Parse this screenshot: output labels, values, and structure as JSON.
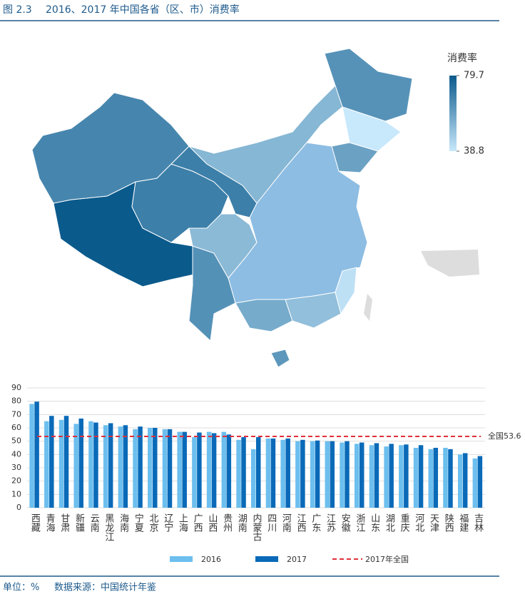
{
  "header": {
    "figure_no": "图 2.3",
    "title": "2016、2017 年中国各省（区、市）消费率"
  },
  "chart_data": [
    {
      "type": "map",
      "colorbar_title": "消费率",
      "clim": [
        38.8,
        79.7
      ],
      "cticks": [
        38.8,
        79.7
      ],
      "colorscale": [
        "#c8e8fb",
        "#0b5a8c"
      ]
    },
    {
      "type": "bar",
      "categories": [
        "西藏",
        "青海",
        "甘肃",
        "新疆",
        "云南",
        "黑龙江",
        "海南",
        "宁夏",
        "北京",
        "辽宁",
        "上海",
        "广西",
        "山西",
        "贵州",
        "湖南",
        "内蒙古",
        "四川",
        "河南",
        "江西",
        "广东",
        "江苏",
        "安徽",
        "浙江",
        "山东",
        "湖北",
        "重庆",
        "河北",
        "天津",
        "陕西",
        "福建",
        "吉林"
      ],
      "series": [
        {
          "name": "2016",
          "color": "#6cbfee",
          "values": [
            78,
            65,
            66,
            63,
            65,
            62,
            61,
            59,
            60,
            59,
            57,
            53,
            57,
            57,
            51,
            44,
            52,
            51,
            50,
            50,
            50,
            49,
            48,
            47,
            46,
            47,
            45,
            44,
            45,
            40,
            37
          ]
        },
        {
          "name": "2017",
          "color": "#0a6ab8",
          "values": [
            79.7,
            69,
            69,
            67,
            64,
            63.5,
            62,
            61,
            60,
            59,
            57,
            56.5,
            56,
            55,
            53,
            53,
            52,
            52,
            51,
            50.5,
            50,
            50,
            49,
            48.5,
            48,
            47.5,
            47,
            45,
            44,
            41,
            38.8
          ]
        }
      ],
      "reference": {
        "name": "2017年全国",
        "value": 53.6,
        "value_label": "全国53.6",
        "color": "#e0303a"
      },
      "ylim": [
        0,
        90
      ],
      "yticks": [
        0,
        10,
        20,
        30,
        40,
        50,
        60,
        70,
        80,
        90
      ],
      "grid": true
    }
  ],
  "footer": {
    "unit": "单位：%",
    "source": "数据来源：中国统计年鉴"
  }
}
